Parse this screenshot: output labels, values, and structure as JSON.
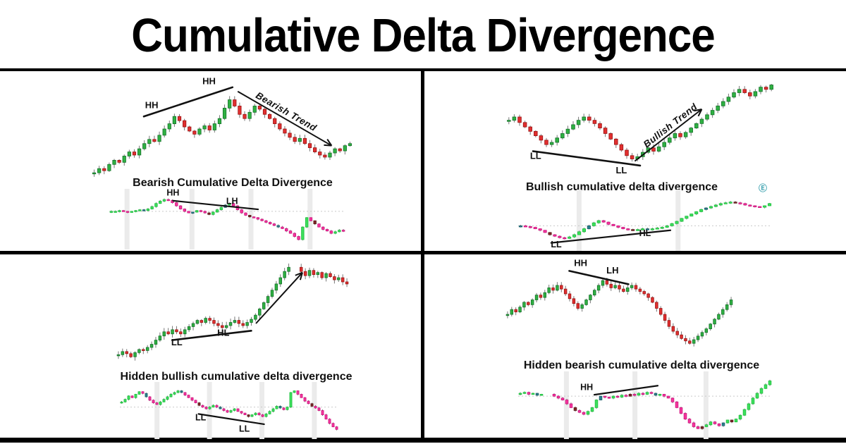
{
  "title": "Cumulative Delta Divergence",
  "quadrants": {
    "tl": {
      "caption": "Bearish Cumulative Delta Divergence"
    },
    "tr": {
      "caption": "Bullish cumulative delta divergence",
      "icon_glyph": "Ⓔ"
    },
    "bl": {
      "caption": "Hidden bullish cumulative delta divergence"
    },
    "br": {
      "caption": "Hidden bearish cumulative delta divergence"
    }
  },
  "colors": {
    "price": {
      "up": "#2fb142",
      "up_border": "#15722a",
      "down": "#e12f2f",
      "down_border": "#991414"
    },
    "delta": {
      "up": "#3ddf5c",
      "up_border": "#1fbf3f",
      "down": "#f4379c",
      "down_border": "#cf1480",
      "teal": "#2a7f8e",
      "teal_border": "#1d5f6b",
      "maroon": "#7c2626",
      "maroon_border": "#571717"
    },
    "band": "#ebebeb",
    "zero_line": "#c9c9c9",
    "annotation": "#111111",
    "wick": "#777777"
  },
  "chart_data": [
    {
      "id": "tl-price",
      "panel": "tl",
      "type": "candlestick",
      "kind": "price",
      "ylim": [
        0,
        100
      ],
      "closes": [
        8,
        12,
        10,
        16,
        20,
        18,
        24,
        28,
        25,
        31,
        36,
        40,
        38,
        44,
        50,
        55,
        62,
        58,
        52,
        48,
        45,
        50,
        53,
        49,
        55,
        60,
        70,
        78,
        72,
        64,
        60,
        66,
        72,
        69,
        64,
        60,
        55,
        50,
        46,
        42,
        38,
        41,
        36,
        32,
        28,
        25,
        23,
        27,
        31,
        29,
        34,
        36
      ],
      "annotations": {
        "lines": [
          {
            "x1": 0.2,
            "y1": 62,
            "x2": 0.54,
            "y2": 90
          }
        ],
        "labels": [
          {
            "t": "HH",
            "x": 0.23,
            "y": 70
          },
          {
            "t": "HH",
            "x": 0.45,
            "y": 93
          }
        ],
        "arrows": [
          {
            "x1": 0.56,
            "y1": 86,
            "x2": 0.92,
            "y2": 34,
            "label": "Bearish Trend",
            "lx": 0.74,
            "ly": 64,
            "rot": 30
          }
        ]
      }
    },
    {
      "id": "tl-delta",
      "panel": "tl",
      "type": "candlestick",
      "kind": "delta",
      "ylim": [
        5,
        75
      ],
      "zero": 50,
      "bands": [
        0.075,
        0.35,
        0.6,
        0.85
      ],
      "closes": [
        50,
        50,
        51,
        50,
        49,
        50,
        51,
        52,
        51,
        53,
        56,
        60,
        63,
        65,
        64,
        61,
        57,
        53,
        50,
        48,
        49,
        51,
        50,
        48,
        46,
        49,
        52,
        55,
        58,
        60,
        57,
        52,
        48,
        45,
        43,
        42,
        40,
        38,
        36,
        34,
        32,
        30,
        28,
        25,
        22,
        18,
        14,
        30,
        42,
        38,
        34,
        30,
        27,
        25,
        22,
        24,
        26,
        25
      ],
      "accents": {
        "teal": [
          8,
          20,
          28,
          41
        ],
        "maroon": [
          24,
          34,
          50
        ]
      },
      "annotations": {
        "lines": [
          {
            "x1": 0.27,
            "y1": 63.5,
            "x2": 0.63,
            "y2": 52.5
          }
        ],
        "labels": [
          {
            "t": "HH",
            "x": 0.27,
            "y": 70
          },
          {
            "t": "LH",
            "x": 0.52,
            "y": 59.5
          }
        ]
      }
    },
    {
      "id": "tr-price",
      "panel": "tr",
      "type": "candlestick",
      "kind": "price",
      "ylim": [
        10,
        100
      ],
      "closes": [
        60,
        63,
        58,
        54,
        50,
        46,
        42,
        38,
        40,
        44,
        48,
        52,
        56,
        60,
        63,
        60,
        57,
        53,
        48,
        43,
        38,
        33,
        28,
        25,
        27,
        31,
        35,
        32,
        36,
        40,
        44,
        48,
        45,
        49,
        53,
        57,
        61,
        65,
        69,
        73,
        77,
        81,
        85,
        88,
        85,
        82,
        86,
        90,
        88,
        92
      ],
      "annotations": {
        "lines": [
          {
            "x1": 0.1,
            "y1": 32,
            "x2": 0.5,
            "y2": 19
          }
        ],
        "labels": [
          {
            "t": "LL",
            "x": 0.11,
            "y": 25
          },
          {
            "t": "LL",
            "x": 0.43,
            "y": 12
          }
        ],
        "arrows": [
          {
            "x1": 0.48,
            "y1": 23,
            "x2": 0.73,
            "y2": 70,
            "label": "Bullish Trend",
            "lx": 0.62,
            "ly": 53,
            "rot": -38
          }
        ]
      }
    },
    {
      "id": "tr-delta",
      "panel": "tr",
      "type": "candlestick",
      "kind": "delta",
      "ylim": [
        20,
        95
      ],
      "zero": 50,
      "bands": [
        0.24,
        0.63
      ],
      "closes": [
        50,
        49,
        48,
        46,
        44,
        41,
        38,
        36,
        34,
        33,
        35,
        38,
        42,
        46,
        50,
        54,
        57,
        55,
        52,
        50,
        48,
        46,
        45,
        44,
        45,
        46,
        45,
        46,
        47,
        48,
        50,
        53,
        56,
        60,
        63,
        66,
        69,
        72,
        74,
        76,
        78,
        80,
        81,
        82,
        81,
        80,
        78,
        77,
        76,
        75,
        77,
        80
      ],
      "accents": {
        "teal": [
          0,
          14,
          26,
          38
        ],
        "maroon": [
          6,
          23,
          44
        ]
      },
      "annotations": {
        "lines": [
          {
            "x1": 0.13,
            "y1": 27,
            "x2": 0.6,
            "y2": 44
          }
        ],
        "labels": [
          {
            "t": "LL",
            "x": 0.15,
            "y": 21
          },
          {
            "t": "HL",
            "x": 0.5,
            "y": 36
          }
        ]
      }
    },
    {
      "id": "bl-price",
      "panel": "bl",
      "type": "candlestick",
      "kind": "price",
      "ylim": [
        0,
        105
      ],
      "closes": [
        12,
        15,
        13,
        10,
        14,
        17,
        16,
        19,
        22,
        26,
        30,
        34,
        32,
        36,
        34,
        32,
        36,
        39,
        42,
        45,
        43,
        47,
        45,
        42,
        40,
        38,
        40,
        43,
        45,
        42,
        40,
        43,
        46,
        50,
        56,
        62,
        68,
        74,
        80,
        86,
        92,
        96,
        null,
        null,
        92,
        88,
        93,
        89,
        91,
        86,
        90,
        87,
        84,
        86,
        82,
        80
      ],
      "annotations": {
        "lines": [
          {
            "x1": 0.24,
            "y1": 26,
            "x2": 0.58,
            "y2": 35
          }
        ],
        "labels": [
          {
            "t": "LL",
            "x": 0.26,
            "y": 21
          },
          {
            "t": "HL",
            "x": 0.46,
            "y": 30
          }
        ],
        "arrows": [
          {
            "x1": 0.6,
            "y1": 42,
            "x2": 0.8,
            "y2": 91
          }
        ]
      }
    },
    {
      "id": "bl-delta",
      "panel": "bl",
      "type": "candlestick",
      "kind": "delta",
      "ylim": [
        15,
        75
      ],
      "zero": 49,
      "bands": [
        0.17,
        0.41,
        0.65,
        0.89
      ],
      "closes": [
        55,
        58,
        62,
        60,
        64,
        67,
        65,
        61,
        57,
        54,
        52,
        55,
        58,
        61,
        64,
        66,
        68,
        66,
        63,
        60,
        57,
        54,
        51,
        49,
        47,
        49,
        51,
        49,
        47,
        45,
        43,
        45,
        47,
        44,
        42,
        40,
        38,
        40,
        42,
        40,
        38,
        41,
        44,
        47,
        50,
        48,
        46,
        49,
        66,
        68,
        64,
        60,
        56,
        53,
        50,
        48,
        45,
        40,
        35,
        30,
        26,
        23
      ],
      "accents": {
        "teal": [
          7,
          17,
          28,
          45
        ],
        "maroon": [
          22,
          36,
          54
        ]
      },
      "annotations": {
        "lines": [
          {
            "x1": 0.36,
            "y1": 41,
            "x2": 0.66,
            "y2": 29
          }
        ],
        "labels": [
          {
            "t": "LL",
            "x": 0.37,
            "y": 33.5
          },
          {
            "t": "LL",
            "x": 0.57,
            "y": 20.5
          }
        ]
      }
    },
    {
      "id": "br-price",
      "panel": "br",
      "type": "candlestick",
      "kind": "price",
      "ylim": [
        15,
        95
      ],
      "closes": [
        50,
        54,
        52,
        56,
        60,
        58,
        62,
        66,
        64,
        68,
        72,
        70,
        74,
        71,
        67,
        63,
        59,
        55,
        58,
        62,
        66,
        70,
        74,
        78,
        75,
        72,
        74,
        71,
        69,
        72,
        74,
        71,
        69,
        67,
        64,
        60,
        55,
        50,
        45,
        40,
        36,
        33,
        30,
        28,
        26,
        29,
        32,
        35,
        38,
        42,
        46,
        50,
        54,
        58,
        62
      ],
      "annotations": {
        "lines": [
          {
            "x1": 0.28,
            "y1": 86,
            "x2": 0.54,
            "y2": 75
          }
        ],
        "labels": [
          {
            "t": "HH",
            "x": 0.33,
            "y": 90
          },
          {
            "t": "LH",
            "x": 0.47,
            "y": 84
          }
        ]
      }
    },
    {
      "id": "br-delta",
      "panel": "br",
      "type": "candlestick",
      "kind": "delta",
      "ylim": [
        10,
        75
      ],
      "zero": 52,
      "bands": [
        0.19,
        0.46,
        0.74
      ],
      "closes": [
        55,
        56,
        54,
        55,
        53,
        54,
        null,
        null,
        52,
        50,
        48,
        44,
        40,
        37,
        35,
        33,
        36,
        40,
        48,
        52,
        51,
        50,
        52,
        51,
        53,
        52,
        54,
        53,
        55,
        54,
        56,
        55,
        53,
        54,
        52,
        50,
        46,
        40,
        34,
        28,
        24,
        20,
        18,
        20,
        22,
        25,
        23,
        21,
        24,
        27,
        25,
        28,
        32,
        38,
        44,
        50,
        55,
        60,
        64,
        68
      ],
      "accents": {
        "teal": [
          4,
          19,
          32,
          48
        ],
        "maroon": [
          13,
          26,
          43,
          50
        ]
      },
      "annotations": {
        "lines": [
          {
            "x1": 0.3,
            "y1": 53.5,
            "x2": 0.55,
            "y2": 63
          }
        ],
        "labels": [
          {
            "t": "HH",
            "x": 0.27,
            "y": 58.5
          }
        ]
      }
    }
  ]
}
